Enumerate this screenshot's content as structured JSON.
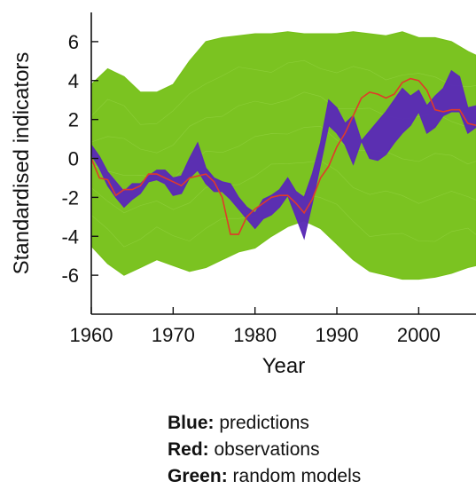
{
  "chart_data": {
    "type": "area",
    "xlabel": "Year",
    "ylabel": "Standardised indicators",
    "xlim": [
      1960,
      2007
    ],
    "ylim": [
      -8,
      7.5
    ],
    "xticks": [
      "1960",
      "1970",
      "1980",
      "1990",
      "2000"
    ],
    "yticks": [
      "6",
      "4",
      "2",
      "0",
      "-2",
      "-4",
      "-6"
    ],
    "grid": false,
    "series": [
      {
        "name": "random models",
        "kind": "band",
        "x": [
          1960,
          1962,
          1964,
          1966,
          1968,
          1970,
          1972,
          1974,
          1976,
          1978,
          1980,
          1982,
          1984,
          1986,
          1988,
          1990,
          1992,
          1994,
          1996,
          1998,
          2000,
          2002,
          2004,
          2006,
          2007
        ],
        "upper": [
          3.8,
          4.6,
          4.2,
          3.4,
          3.4,
          3.8,
          5.0,
          6.0,
          6.2,
          6.3,
          6.4,
          6.4,
          6.5,
          6.4,
          6.4,
          6.4,
          6.5,
          6.4,
          6.3,
          6.5,
          6.2,
          6.2,
          6.0,
          5.5,
          5.3
        ],
        "lower": [
          -4.5,
          -5.4,
          -6.0,
          -5.6,
          -5.2,
          -5.5,
          -5.8,
          -5.6,
          -5.2,
          -4.8,
          -4.6,
          -4.0,
          -3.5,
          -3.2,
          -3.6,
          -4.4,
          -5.2,
          -5.8,
          -6.0,
          -6.2,
          -6.2,
          -6.1,
          -5.9,
          -5.6,
          -5.5
        ]
      },
      {
        "name": "predictions",
        "kind": "band",
        "x": [
          1960,
          1961,
          1962,
          1963,
          1964,
          1965,
          1966,
          1967,
          1968,
          1969,
          1970,
          1971,
          1972,
          1973,
          1974,
          1975,
          1976,
          1977,
          1978,
          1979,
          1980,
          1981,
          1982,
          1983,
          1984,
          1985,
          1986,
          1987,
          1988,
          1989,
          1990,
          1991,
          1992,
          1993,
          1994,
          1995,
          1996,
          1997,
          1998,
          1999,
          2000,
          2001,
          2002,
          2003,
          2004,
          2005,
          2006,
          2007
        ],
        "upper": [
          0.7,
          0.1,
          -0.7,
          -1.2,
          -1.7,
          -1.3,
          -1.3,
          -0.9,
          -0.6,
          -0.6,
          -1.0,
          -0.9,
          0.0,
          0.8,
          -0.5,
          -1.0,
          -1.2,
          -1.3,
          -2.0,
          -2.5,
          -2.8,
          -2.1,
          -1.9,
          -1.6,
          -1.0,
          -1.7,
          -2.0,
          -0.8,
          0.8,
          3.0,
          2.6,
          1.8,
          2.2,
          0.9,
          1.4,
          1.9,
          2.4,
          3.0,
          3.6,
          3.2,
          3.5,
          2.7,
          3.2,
          3.6,
          4.5,
          4.2,
          2.6,
          2.7
        ],
        "lower": [
          0.2,
          -0.5,
          -1.4,
          -2.0,
          -2.5,
          -2.1,
          -1.8,
          -1.2,
          -1.1,
          -1.3,
          -1.9,
          -1.8,
          -1.0,
          -0.6,
          -1.3,
          -1.7,
          -1.7,
          -2.1,
          -2.6,
          -3.1,
          -3.6,
          -3.1,
          -2.9,
          -2.5,
          -1.9,
          -3.0,
          -4.1,
          -2.3,
          -0.3,
          1.7,
          1.3,
          0.7,
          -0.3,
          0.9,
          0.0,
          -0.1,
          0.2,
          0.8,
          1.3,
          1.7,
          2.4,
          1.3,
          1.6,
          2.2,
          2.4,
          2.4,
          1.3,
          1.6
        ]
      },
      {
        "name": "observations",
        "kind": "line",
        "x": [
          1960,
          1961,
          1962,
          1963,
          1964,
          1965,
          1966,
          1967,
          1968,
          1969,
          1970,
          1971,
          1972,
          1973,
          1974,
          1975,
          1976,
          1977,
          1978,
          1979,
          1980,
          1981,
          1982,
          1983,
          1984,
          1985,
          1986,
          1987,
          1988,
          1989,
          1990,
          1991,
          1992,
          1993,
          1994,
          1995,
          1996,
          1997,
          1998,
          1999,
          2000,
          2001,
          2002,
          2003,
          2004,
          2005,
          2006,
          2007
        ],
        "values": [
          0.0,
          -1.0,
          -1.1,
          -1.9,
          -1.6,
          -1.6,
          -1.4,
          -0.8,
          -0.8,
          -1.0,
          -1.2,
          -1.4,
          -1.0,
          -0.9,
          -0.8,
          -1.2,
          -2.0,
          -3.9,
          -3.9,
          -3.0,
          -2.6,
          -2.3,
          -2.0,
          -1.9,
          -1.9,
          -2.3,
          -2.8,
          -2.1,
          -1.0,
          -0.4,
          0.6,
          1.3,
          2.2,
          3.1,
          3.4,
          3.3,
          3.1,
          3.3,
          3.9,
          4.1,
          4.0,
          3.5,
          2.5,
          2.4,
          2.5,
          2.5,
          1.8,
          1.7
        ]
      }
    ],
    "colors": {
      "random models": "#77c11a",
      "predictions": "#5a2ab6",
      "observations": "#e03a2a"
    }
  },
  "legend": {
    "items": [
      {
        "key": "Blue:",
        "text": " predictions"
      },
      {
        "key": "Red:",
        "text": " observations"
      },
      {
        "key": "Green:",
        "text": " random models"
      }
    ]
  }
}
